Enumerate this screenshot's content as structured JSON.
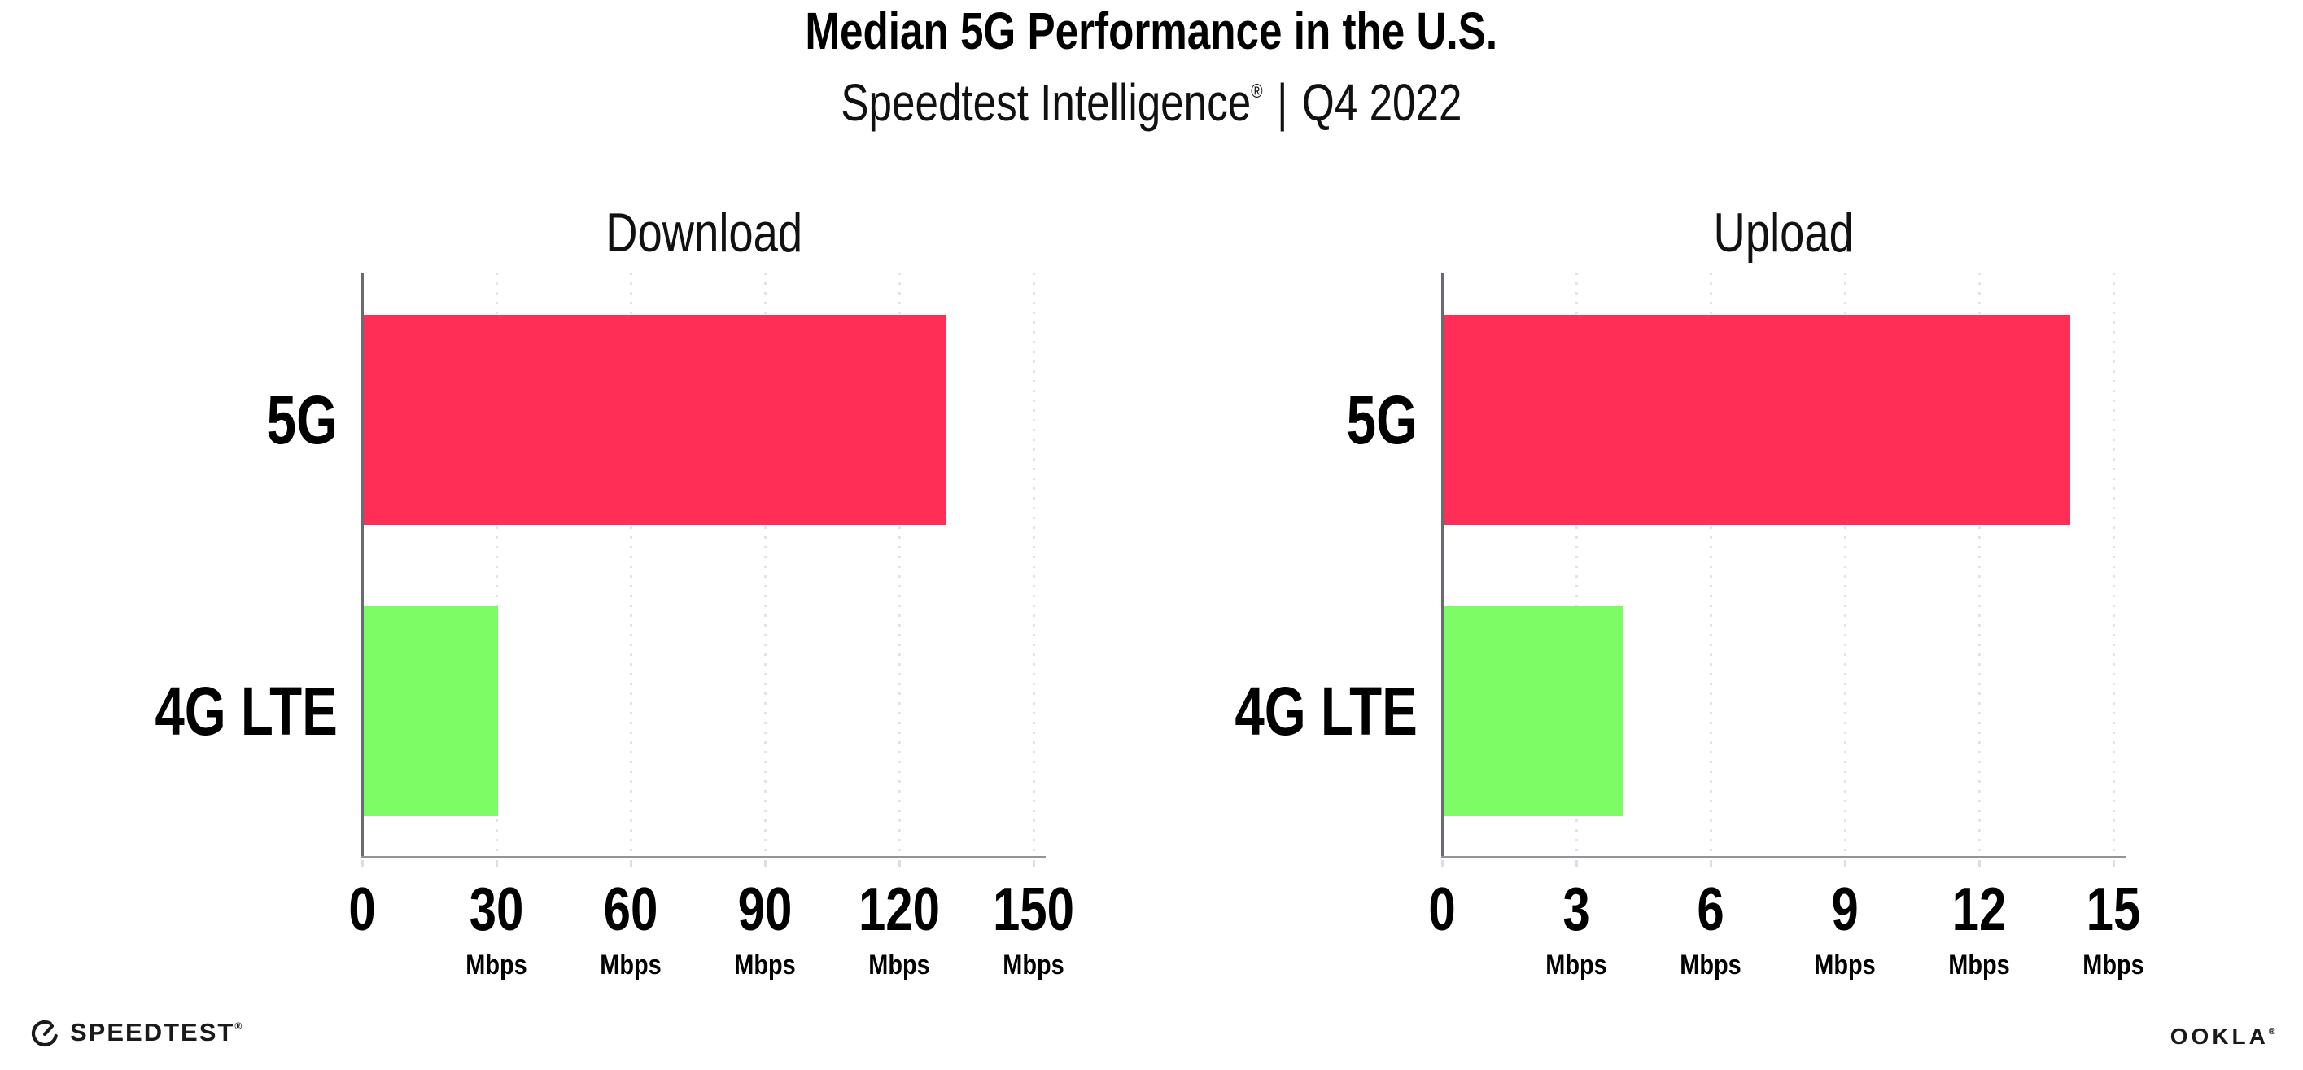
{
  "header": {
    "title": "Median 5G Performance in the U.S.",
    "subtitle_brand": "Speedtest Intelligence",
    "subtitle_mark": "®",
    "subtitle_separator": "|",
    "subtitle_period": "Q4 2022"
  },
  "chart_data": [
    {
      "type": "bar",
      "orientation": "horizontal",
      "title": "Download",
      "categories": [
        "5G",
        "4G LTE"
      ],
      "values": [
        130,
        30
      ],
      "value_unit": "Mbps",
      "xlim": [
        0,
        150
      ],
      "xticks": [
        0,
        30,
        60,
        90,
        120,
        150
      ],
      "xtick_unit_label": "Mbps",
      "bar_colors": [
        "#FF2E56",
        "#7EFC66"
      ],
      "grid": "dotted-vertical",
      "legend": "none"
    },
    {
      "type": "bar",
      "orientation": "horizontal",
      "title": "Upload",
      "categories": [
        "5G",
        "4G LTE"
      ],
      "values": [
        14,
        4
      ],
      "value_unit": "Mbps",
      "xlim": [
        0,
        15
      ],
      "xticks": [
        0,
        3,
        6,
        9,
        12,
        15
      ],
      "xtick_unit_label": "Mbps",
      "bar_colors": [
        "#FF2E56",
        "#7EFC66"
      ],
      "grid": "dotted-vertical",
      "legend": "none"
    }
  ],
  "footer": {
    "speedtest_label": "SPEEDTEST",
    "speedtest_mark": "®",
    "ookla_label": "OOKLA",
    "ookla_mark": "®"
  },
  "colors": {
    "bar_5g": "#FF2E56",
    "bar_4g_lte": "#7EFC66",
    "gridline": "#E3E2ED",
    "y_axis": "#6a6a72",
    "x_axis": "#949498",
    "text": "#000000"
  }
}
